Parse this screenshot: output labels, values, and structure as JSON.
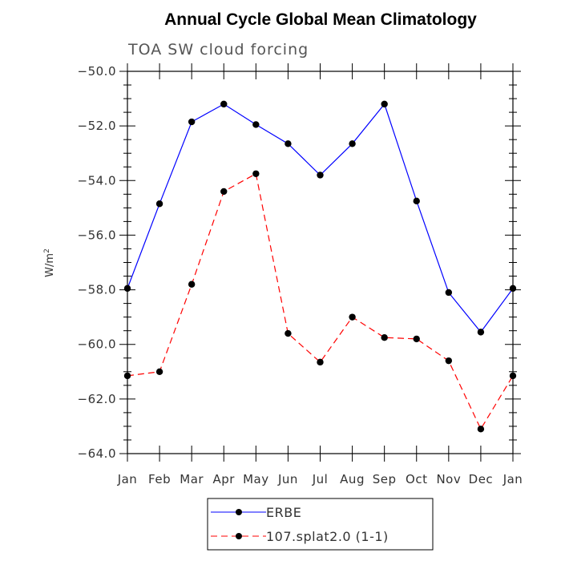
{
  "chart_data": {
    "type": "line",
    "title": "Annual Cycle Global Mean Climatology",
    "subtitle": "TOA SW cloud forcing",
    "ylabel": "W/m",
    "ylabel_sup": "2",
    "xlabel": "",
    "categories": [
      "Jan",
      "Feb",
      "Mar",
      "Apr",
      "May",
      "Jun",
      "Jul",
      "Aug",
      "Sep",
      "Oct",
      "Nov",
      "Dec",
      "Jan"
    ],
    "ylim": [
      -64.0,
      -50.0
    ],
    "yticks": [
      "-50.0",
      "-52.0",
      "-54.0",
      "-56.0",
      "-58.0",
      "-60.0",
      "-62.0",
      "-64.0"
    ],
    "grid": false,
    "legend_position": "bottom",
    "series": [
      {
        "name": "ERBE",
        "color": "#0000ff",
        "dash": "solid",
        "values": [
          -57.95,
          -54.85,
          -51.85,
          -51.2,
          -51.95,
          -52.65,
          -53.8,
          -52.65,
          -51.2,
          -54.75,
          -58.1,
          -59.55,
          -57.95
        ]
      },
      {
        "name": "107.splat2.0 (1-1)",
        "color": "#ff0000",
        "dash": "dashed",
        "values": [
          -61.15,
          -61.0,
          -57.8,
          -54.4,
          -53.75,
          -59.6,
          -60.65,
          -59.0,
          -59.75,
          -59.8,
          -60.6,
          -63.1,
          -61.15
        ]
      }
    ]
  }
}
